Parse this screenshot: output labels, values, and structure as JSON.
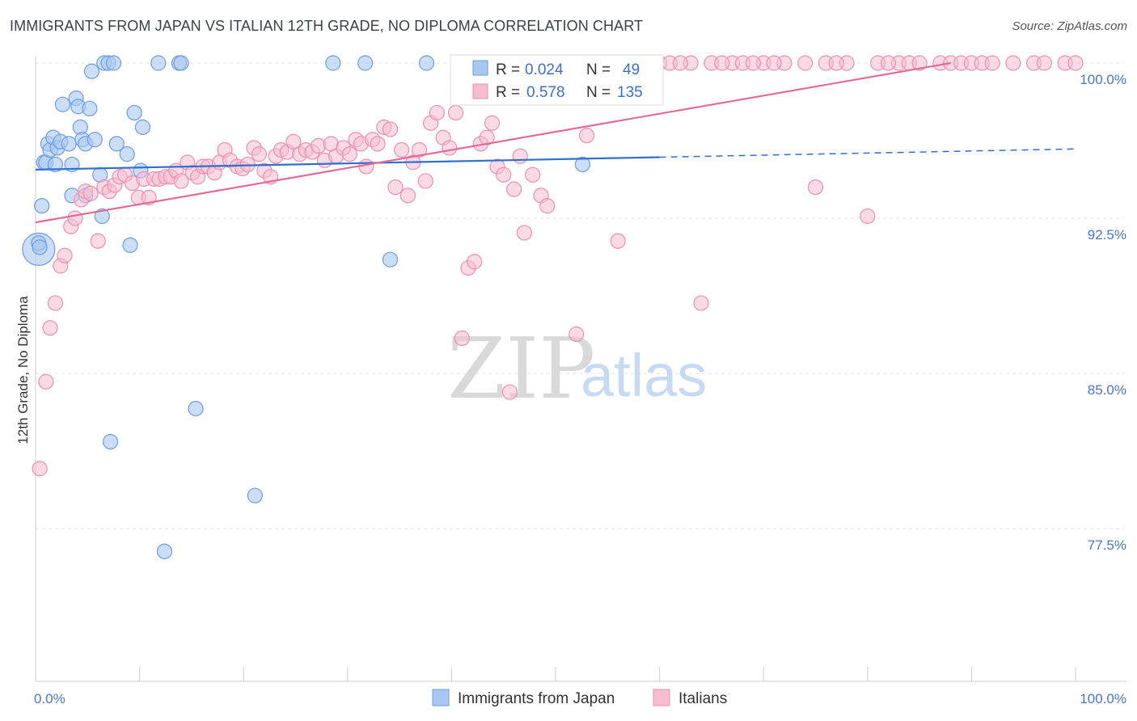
{
  "header": {
    "title": "IMMIGRANTS FROM JAPAN VS ITALIAN 12TH GRADE, NO DIPLOMA CORRELATION CHART",
    "source": "Source: ZipAtlas.com"
  },
  "watermark": {
    "zip": "ZIP",
    "atlas": "atlas"
  },
  "colors": {
    "japan_fill": "#a9c8ef",
    "japan_stroke": "#6d9de0",
    "japan_line": "#2f6fcf",
    "italian_fill": "#f6bdd0",
    "italian_stroke": "#ec8fb0",
    "italian_line": "#e26c98",
    "tick_text": "#4a74c9",
    "grid": "#e3e3e3"
  },
  "legend": {
    "rows": [
      {
        "r_label": "R =",
        "r_value": "0.024",
        "n_label": "N =",
        "n_value": "49"
      },
      {
        "r_label": "R =",
        "r_value": "0.578",
        "n_label": "N =",
        "n_value": "135"
      }
    ]
  },
  "chart_data": {
    "type": "scatter",
    "title": "IMMIGRANTS FROM JAPAN VS ITALIAN 12TH GRADE, NO DIPLOMA CORRELATION CHART",
    "xlabel": "",
    "ylabel": "12th Grade, No Diploma",
    "xlim": [
      0,
      100
    ],
    "ylim": [
      71.5,
      102
    ],
    "x_tick_labels": [
      "0.0%",
      "100.0%"
    ],
    "y_ticks": [
      {
        "value": 100,
        "label": "100.0%"
      },
      {
        "value": 92.5,
        "label": "92.5%"
      },
      {
        "value": 85,
        "label": "85.0%"
      },
      {
        "value": 77.5,
        "label": "77.5%"
      }
    ],
    "grid": true,
    "legend_position": "top-center",
    "series": [
      {
        "name": "Immigrants from Japan",
        "trend": {
          "x0": 0,
          "y0": 94.85,
          "x1": 60,
          "y1": 95.45,
          "dash_to": 100,
          "dash_y": 95.85
        },
        "points": [
          [
            0.3,
            91.0
          ],
          [
            0.3,
            91.3
          ],
          [
            0.6,
            93.1
          ],
          [
            0.8,
            95.2
          ],
          [
            1.0,
            95.2
          ],
          [
            1.2,
            96.1
          ],
          [
            1.4,
            95.8
          ],
          [
            1.7,
            96.4
          ],
          [
            1.9,
            95.1
          ],
          [
            2.1,
            95.9
          ],
          [
            2.4,
            96.2
          ],
          [
            2.6,
            98.0
          ],
          [
            3.2,
            96.1
          ],
          [
            3.5,
            95.1
          ],
          [
            3.5,
            93.6
          ],
          [
            3.9,
            98.3
          ],
          [
            4.1,
            97.9
          ],
          [
            4.3,
            96.9
          ],
          [
            4.5,
            96.3
          ],
          [
            4.8,
            96.1
          ],
          [
            4.8,
            93.6
          ],
          [
            5.2,
            97.8
          ],
          [
            5.4,
            99.6
          ],
          [
            5.7,
            96.3
          ],
          [
            6.2,
            94.6
          ],
          [
            6.4,
            92.6
          ],
          [
            6.6,
            100.0
          ],
          [
            7.0,
            100.0
          ],
          [
            7.2,
            81.7
          ],
          [
            7.8,
            96.1
          ],
          [
            8.8,
            95.6
          ],
          [
            9.1,
            91.2
          ],
          [
            9.5,
            97.6
          ],
          [
            10.1,
            94.8
          ],
          [
            10.3,
            96.9
          ],
          [
            11.8,
            100.0
          ],
          [
            12.4,
            76.4
          ],
          [
            13.8,
            100.0
          ],
          [
            14.0,
            100.0
          ],
          [
            15.4,
            83.3
          ],
          [
            21.1,
            79.1
          ],
          [
            28.6,
            100.0
          ],
          [
            31.7,
            100.0
          ],
          [
            34.1,
            90.5
          ],
          [
            37.6,
            100.0
          ],
          [
            42.3,
            100.0
          ],
          [
            52.6,
            95.1
          ],
          [
            0.4,
            91.1
          ],
          [
            7.5,
            100.0
          ]
        ]
      },
      {
        "name": "Italians",
        "trend": {
          "x0": 0,
          "y0": 92.3,
          "x1": 88,
          "y1": 100.0
        },
        "points": [
          [
            0.4,
            80.4
          ],
          [
            1.0,
            84.6
          ],
          [
            1.4,
            87.2
          ],
          [
            1.9,
            88.4
          ],
          [
            2.4,
            90.2
          ],
          [
            2.8,
            90.7
          ],
          [
            3.4,
            92.1
          ],
          [
            3.8,
            92.5
          ],
          [
            4.4,
            93.4
          ],
          [
            4.8,
            93.8
          ],
          [
            5.3,
            93.7
          ],
          [
            6.0,
            91.4
          ],
          [
            6.6,
            94.0
          ],
          [
            7.1,
            93.8
          ],
          [
            7.6,
            94.1
          ],
          [
            8.1,
            94.5
          ],
          [
            8.6,
            94.6
          ],
          [
            9.3,
            94.2
          ],
          [
            9.9,
            93.5
          ],
          [
            10.4,
            94.4
          ],
          [
            10.9,
            93.5
          ],
          [
            11.4,
            94.4
          ],
          [
            11.9,
            94.4
          ],
          [
            12.5,
            94.5
          ],
          [
            13.0,
            94.5
          ],
          [
            13.5,
            94.8
          ],
          [
            14.0,
            94.3
          ],
          [
            14.6,
            95.2
          ],
          [
            15.1,
            94.7
          ],
          [
            15.6,
            94.5
          ],
          [
            16.1,
            95.0
          ],
          [
            16.6,
            95.0
          ],
          [
            17.2,
            94.7
          ],
          [
            17.7,
            95.2
          ],
          [
            18.2,
            95.8
          ],
          [
            18.7,
            95.3
          ],
          [
            19.4,
            95.0
          ],
          [
            19.9,
            94.9
          ],
          [
            20.4,
            95.1
          ],
          [
            21.0,
            95.9
          ],
          [
            21.5,
            95.6
          ],
          [
            22.0,
            94.8
          ],
          [
            22.6,
            94.5
          ],
          [
            23.1,
            95.5
          ],
          [
            23.6,
            95.8
          ],
          [
            24.2,
            95.7
          ],
          [
            24.8,
            96.2
          ],
          [
            25.4,
            95.6
          ],
          [
            26.0,
            95.8
          ],
          [
            26.6,
            95.7
          ],
          [
            27.2,
            96.0
          ],
          [
            27.8,
            95.3
          ],
          [
            28.4,
            96.1
          ],
          [
            28.9,
            95.5
          ],
          [
            29.6,
            95.9
          ],
          [
            30.2,
            95.6
          ],
          [
            30.8,
            96.3
          ],
          [
            31.3,
            96.1
          ],
          [
            31.8,
            95.0
          ],
          [
            32.4,
            96.3
          ],
          [
            32.9,
            96.1
          ],
          [
            33.5,
            96.9
          ],
          [
            34.1,
            96.8
          ],
          [
            34.6,
            94.0
          ],
          [
            35.2,
            95.8
          ],
          [
            35.8,
            93.6
          ],
          [
            36.3,
            95.2
          ],
          [
            36.9,
            95.8
          ],
          [
            37.5,
            94.3
          ],
          [
            38.0,
            97.1
          ],
          [
            38.6,
            97.6
          ],
          [
            39.2,
            96.4
          ],
          [
            39.8,
            95.9
          ],
          [
            40.4,
            97.6
          ],
          [
            41.0,
            86.7
          ],
          [
            41.6,
            90.1
          ],
          [
            42.2,
            90.4
          ],
          [
            42.8,
            96.1
          ],
          [
            43.4,
            96.4
          ],
          [
            43.9,
            97.1
          ],
          [
            44.4,
            95.0
          ],
          [
            45.0,
            94.6
          ],
          [
            45.6,
            84.1
          ],
          [
            46.0,
            93.9
          ],
          [
            46.6,
            95.5
          ],
          [
            47.0,
            91.8
          ],
          [
            47.8,
            94.6
          ],
          [
            48.6,
            93.6
          ],
          [
            49.2,
            93.1
          ],
          [
            50.0,
            100.0
          ],
          [
            51.0,
            100.0
          ],
          [
            52.0,
            86.9
          ],
          [
            53.0,
            96.5
          ],
          [
            54.0,
            100.0
          ],
          [
            55.0,
            100.0
          ],
          [
            56.0,
            91.4
          ],
          [
            57.0,
            100.0
          ],
          [
            58.0,
            100.0
          ],
          [
            59.0,
            100.0
          ],
          [
            60.0,
            100.0
          ],
          [
            61.0,
            100.0
          ],
          [
            63.0,
            100.0
          ],
          [
            64.0,
            88.4
          ],
          [
            65.0,
            100.0
          ],
          [
            67.0,
            100.0
          ],
          [
            68.0,
            100.0
          ],
          [
            70.0,
            100.0
          ],
          [
            72.0,
            100.0
          ],
          [
            74.0,
            100.0
          ],
          [
            75.0,
            94.0
          ],
          [
            76.0,
            100.0
          ],
          [
            78.0,
            100.0
          ],
          [
            80.0,
            92.6
          ],
          [
            81.0,
            100.0
          ],
          [
            83.0,
            100.0
          ],
          [
            84.0,
            100.0
          ],
          [
            85.0,
            100.0
          ],
          [
            87.0,
            100.0
          ],
          [
            88.0,
            100.0
          ],
          [
            89.0,
            100.0
          ],
          [
            90.0,
            100.0
          ],
          [
            91.0,
            100.0
          ],
          [
            92.0,
            100.0
          ],
          [
            94.0,
            100.0
          ],
          [
            96.0,
            100.0
          ],
          [
            97.0,
            100.0
          ],
          [
            99.0,
            100.0
          ],
          [
            100.0,
            100.0
          ],
          [
            52.5,
            98.5
          ],
          [
            62.0,
            100.0
          ],
          [
            66.0,
            100.0
          ],
          [
            69.0,
            100.0
          ],
          [
            71.0,
            100.0
          ],
          [
            77.0,
            100.0
          ],
          [
            82.0,
            100.0
          ]
        ]
      }
    ]
  }
}
